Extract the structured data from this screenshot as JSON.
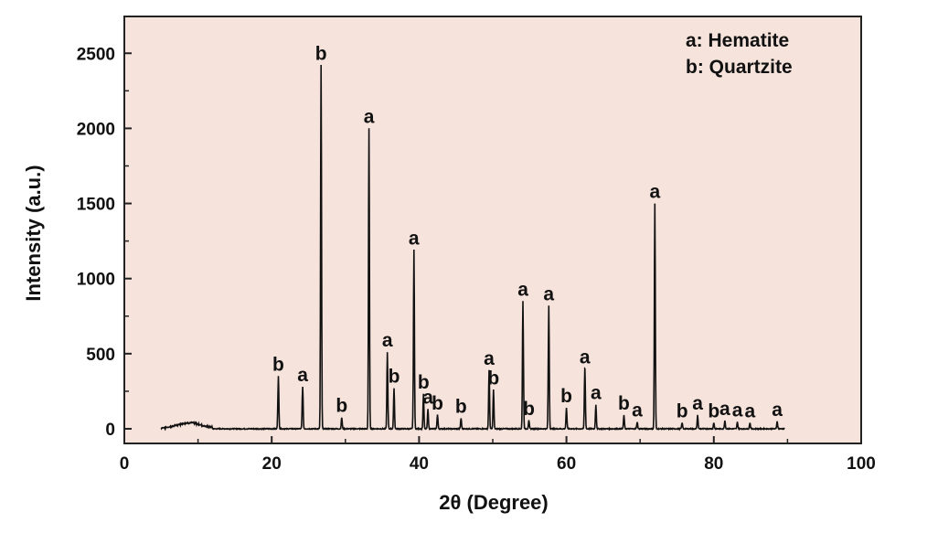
{
  "chart_data": {
    "type": "line",
    "xlabel": "2θ (Degree)",
    "ylabel": "Intensity (a.u.)",
    "xlim": [
      0,
      100
    ],
    "ylim": [
      -100,
      2700
    ],
    "x_ticks": [
      0,
      20,
      40,
      60,
      80,
      100
    ],
    "y_ticks": [
      0,
      500,
      1000,
      1500,
      2000,
      2500
    ],
    "grid": false,
    "legend_position": "top-right",
    "legend": [
      "a: Hematite",
      "b: Quartzite"
    ],
    "colors": {
      "plot_background": "#f6e3dc",
      "line": "#111111"
    },
    "peaks": [
      {
        "x": 20.9,
        "y": 350,
        "label": "b"
      },
      {
        "x": 24.2,
        "y": 280,
        "label": "a"
      },
      {
        "x": 26.7,
        "y": 2420,
        "label": "b"
      },
      {
        "x": 29.5,
        "y": 75,
        "label": "b"
      },
      {
        "x": 33.2,
        "y": 2000,
        "label": "a"
      },
      {
        "x": 35.7,
        "y": 510,
        "label": "a"
      },
      {
        "x": 36.6,
        "y": 270,
        "label": "b"
      },
      {
        "x": 39.3,
        "y": 1190,
        "label": "a"
      },
      {
        "x": 40.6,
        "y": 230,
        "label": "b"
      },
      {
        "x": 41.2,
        "y": 130,
        "label": "a"
      },
      {
        "x": 42.5,
        "y": 90,
        "label": "b"
      },
      {
        "x": 45.7,
        "y": 70,
        "label": "b"
      },
      {
        "x": 49.5,
        "y": 390,
        "label": "a"
      },
      {
        "x": 50.1,
        "y": 260,
        "label": "b"
      },
      {
        "x": 54.1,
        "y": 850,
        "label": "a"
      },
      {
        "x": 54.9,
        "y": 55,
        "label": "b"
      },
      {
        "x": 57.6,
        "y": 820,
        "label": "a"
      },
      {
        "x": 60.0,
        "y": 140,
        "label": "b"
      },
      {
        "x": 62.5,
        "y": 400,
        "label": "a"
      },
      {
        "x": 64.0,
        "y": 160,
        "label": "a"
      },
      {
        "x": 67.8,
        "y": 90,
        "label": "b"
      },
      {
        "x": 69.6,
        "y": 45,
        "label": "a"
      },
      {
        "x": 72.0,
        "y": 1500,
        "label": "a"
      },
      {
        "x": 75.7,
        "y": 40,
        "label": "b"
      },
      {
        "x": 77.8,
        "y": 90,
        "label": "a"
      },
      {
        "x": 80.0,
        "y": 40,
        "label": "b"
      },
      {
        "x": 81.5,
        "y": 55,
        "label": "a"
      },
      {
        "x": 83.2,
        "y": 45,
        "label": "a"
      },
      {
        "x": 84.9,
        "y": 40,
        "label": "a"
      },
      {
        "x": 88.6,
        "y": 50,
        "label": "a"
      }
    ]
  }
}
